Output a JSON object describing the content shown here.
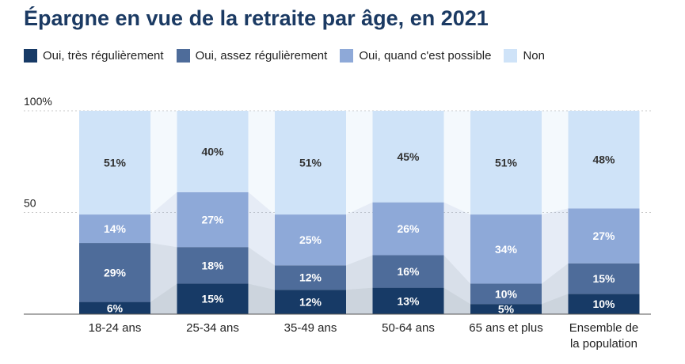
{
  "chart_data": {
    "type": "bar",
    "stacked": true,
    "title": "Épargne en vue de la retraite par âge, en 2021",
    "categories": [
      [
        "18-24 ans"
      ],
      [
        "25-34 ans"
      ],
      [
        "35-49 ans"
      ],
      [
        "50-64 ans"
      ],
      [
        "65 ans et plus"
      ],
      [
        "Ensemble de",
        "la population"
      ]
    ],
    "series": [
      {
        "name": "Oui, très régulièrement",
        "color": "#173a66",
        "label_color": "#ffffff",
        "values": [
          6,
          15,
          12,
          13,
          5,
          10
        ]
      },
      {
        "name": "Oui, assez régulièrement",
        "color": "#4e6c9a",
        "label_color": "#ffffff",
        "values": [
          29,
          18,
          12,
          16,
          10,
          15
        ]
      },
      {
        "name": "Oui, quand c'est possible",
        "color": "#8ea9d8",
        "label_color": "#ffffff",
        "values": [
          14,
          27,
          25,
          26,
          34,
          27
        ]
      },
      {
        "name": "Non",
        "color": "#cfe3f8",
        "label_color": "#333333",
        "values": [
          51,
          40,
          51,
          45,
          51,
          48
        ]
      }
    ],
    "value_labels": [
      [
        "6%",
        "15%",
        "12%",
        "13%",
        "5%",
        "10%"
      ],
      [
        "29%",
        "18%",
        "12%",
        "16%",
        "10%",
        "15%"
      ],
      [
        "14%",
        "27%",
        "25%",
        "26%",
        "34%",
        "27%"
      ],
      [
        "51%",
        "40%",
        "51%",
        "45%",
        "51%",
        "48%"
      ]
    ],
    "yticks": [
      {
        "value": 100,
        "label": "100%"
      },
      {
        "value": 50,
        "label": "50"
      }
    ],
    "ylim": [
      0,
      100
    ],
    "grid": true,
    "legend_position": "top-left",
    "connector_color": "#e3e8ee"
  }
}
